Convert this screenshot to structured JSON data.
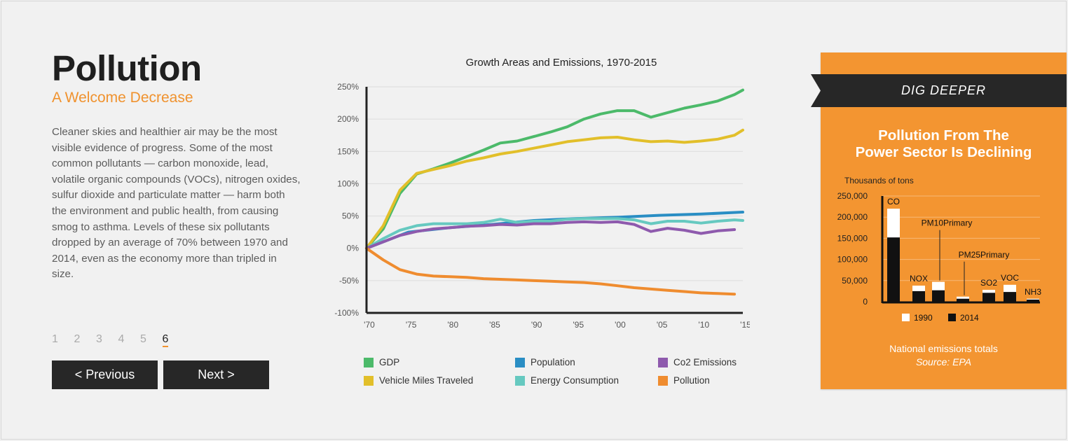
{
  "page": {
    "title": "Pollution",
    "subtitle": "A Welcome Decrease",
    "body": "Cleaner skies and healthier air may be the most visible evidence of progress. Some of the most common pollutants — carbon monoxide, lead, volatile organic compounds (VOCs), nitrogen oxides, sulfur dioxide and particulate matter — harm both the environment and public health, from causing smog to asthma. Levels of these six pollutants dropped by an average of 70% between 1970 and 2014, even as the economy more than tripled in size.",
    "pages": [
      "1",
      "2",
      "3",
      "4",
      "5",
      "6"
    ],
    "active_page": "6",
    "prev_label": "< Previous",
    "next_label": "Next >"
  },
  "side_panel": {
    "ribbon": "DIG DEEPER",
    "title_line1": "Pollution From The",
    "title_line2": "Power Sector Is Declining",
    "foot_line1": "National emissions totals",
    "foot_line2": "Source: EPA"
  },
  "colors": {
    "GDP": "#4cba6a",
    "Vehicle Miles Traveled": "#e2bf2a",
    "Population": "#2a8ec4",
    "Energy Consumption": "#66c9c0",
    "Co2 Emissions": "#8e5aad",
    "Pollution": "#ef8c2f",
    "accent": "#f39531",
    "dark": "#272727"
  },
  "chart_data": [
    {
      "type": "line",
      "title": "Growth Areas and Emissions, 1970-2015",
      "xlabel": "",
      "ylabel": "",
      "xlim": [
        1970,
        2015
      ],
      "ylim": [
        -100,
        250
      ],
      "x_ticks": [
        1970,
        1975,
        1980,
        1985,
        1990,
        1995,
        2000,
        2005,
        2010,
        2015
      ],
      "x_tick_labels": [
        "'70",
        "'75",
        "'80",
        "'85",
        "'90",
        "'95",
        "'00",
        "'05",
        "'10",
        "'15"
      ],
      "y_ticks": [
        -100,
        -50,
        0,
        50,
        100,
        150,
        200,
        250
      ],
      "y_tick_labels": [
        "-100%",
        "-50%",
        "0%",
        "50%",
        "100%",
        "150%",
        "200%",
        "250%"
      ],
      "grid": true,
      "legend_position": "bottom",
      "series": [
        {
          "name": "GDP",
          "x": [
            1970,
            1972,
            1974,
            1976,
            1978,
            1980,
            1982,
            1984,
            1986,
            1988,
            1990,
            1992,
            1994,
            1996,
            1998,
            2000,
            2002,
            2004,
            2006,
            2008,
            2010,
            2012,
            2014,
            2015
          ],
          "values": [
            0,
            30,
            85,
            115,
            123,
            132,
            142,
            152,
            163,
            166,
            173,
            180,
            188,
            200,
            208,
            213,
            213,
            203,
            210,
            217,
            222,
            228,
            238,
            245
          ]
        },
        {
          "name": "Vehicle Miles Traveled",
          "x": [
            1970,
            1972,
            1974,
            1976,
            1978,
            1980,
            1982,
            1984,
            1986,
            1988,
            1990,
            1992,
            1994,
            1996,
            1998,
            2000,
            2002,
            2004,
            2006,
            2008,
            2010,
            2012,
            2014,
            2015
          ],
          "values": [
            0,
            35,
            90,
            116,
            122,
            128,
            135,
            140,
            146,
            150,
            155,
            160,
            165,
            168,
            171,
            172,
            168,
            165,
            166,
            164,
            166,
            169,
            175,
            183
          ]
        },
        {
          "name": "Population",
          "x": [
            1970,
            1975,
            1980,
            1985,
            1990,
            1995,
            2000,
            2005,
            2010,
            2015
          ],
          "values": [
            0,
            25,
            32,
            37,
            43,
            46,
            48,
            51,
            53,
            56
          ]
        },
        {
          "name": "Energy Consumption",
          "x": [
            1970,
            1972,
            1974,
            1976,
            1978,
            1980,
            1982,
            1984,
            1986,
            1988,
            1990,
            1992,
            1994,
            1996,
            1998,
            2000,
            2002,
            2004,
            2006,
            2008,
            2010,
            2012,
            2014,
            2015
          ],
          "values": [
            0,
            15,
            28,
            35,
            38,
            38,
            38,
            40,
            45,
            40,
            42,
            42,
            45,
            46,
            46,
            46,
            44,
            38,
            42,
            42,
            39,
            42,
            44,
            43
          ]
        },
        {
          "name": "Co2 Emissions",
          "x": [
            1970,
            1972,
            1974,
            1976,
            1978,
            1980,
            1982,
            1984,
            1986,
            1988,
            1990,
            1992,
            1994,
            1996,
            1998,
            2000,
            2002,
            2004,
            2006,
            2008,
            2010,
            2012,
            2014
          ],
          "values": [
            0,
            10,
            20,
            26,
            30,
            32,
            34,
            35,
            37,
            36,
            38,
            38,
            40,
            41,
            40,
            41,
            37,
            26,
            31,
            28,
            23,
            27,
            29
          ]
        },
        {
          "name": "Pollution",
          "x": [
            1970,
            1972,
            1974,
            1976,
            1978,
            1980,
            1982,
            1984,
            1986,
            1988,
            1990,
            1992,
            1994,
            1996,
            1998,
            2000,
            2002,
            2004,
            2006,
            2008,
            2010,
            2012,
            2014
          ],
          "values": [
            0,
            -18,
            -33,
            -40,
            -43,
            -44,
            -45,
            -47,
            -48,
            -49,
            -50,
            -51,
            -52,
            -53,
            -55,
            -58,
            -61,
            -63,
            -65,
            -67,
            -69,
            -70,
            -71
          ]
        }
      ]
    },
    {
      "type": "bar",
      "title": "Thousands of tons",
      "categories": [
        "CO",
        "NOX",
        "PM10Primary",
        "PM25Primary",
        "SO2",
        "VOC",
        "NH3"
      ],
      "ylim": [
        0,
        250000
      ],
      "y_ticks": [
        0,
        50000,
        100000,
        150000,
        200000,
        250000
      ],
      "y_tick_labels": [
        "0",
        "50,000",
        "100,000",
        "150,000",
        "200,000",
        "250,000"
      ],
      "legend_position": "bottom",
      "series": [
        {
          "name": "1990",
          "values": [
            220000,
            38000,
            47000,
            12000,
            28000,
            40000,
            7000
          ]
        },
        {
          "name": "2014",
          "values": [
            152000,
            25000,
            27000,
            7000,
            21000,
            23000,
            5000
          ]
        }
      ]
    }
  ]
}
